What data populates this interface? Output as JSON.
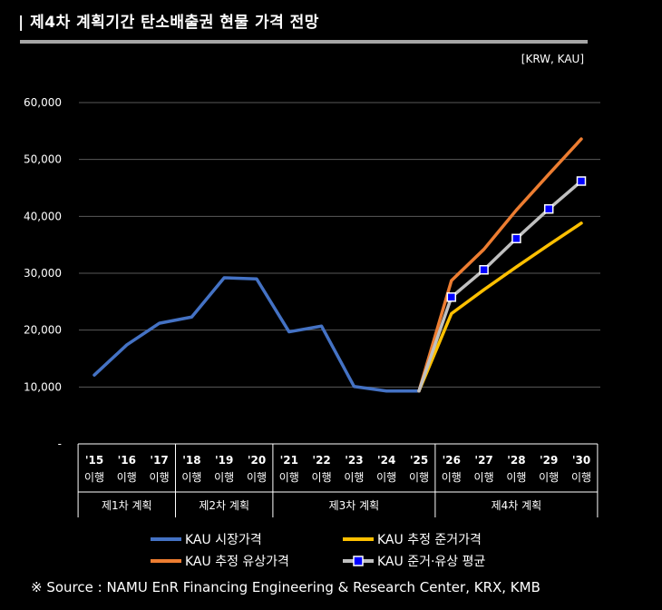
{
  "title": "|  제4차 계획기간 탄소배출권 현물 가격 전망",
  "unit": "[KRW, KAU]",
  "source": "※ Source : NAMU EnR Financing Engineering & Research Center, KRX, KMB",
  "chart_data": {
    "type": "line",
    "ylim": [
      0,
      60000
    ],
    "yticks": [
      {
        "value": 0,
        "label": "-"
      },
      {
        "value": 10000,
        "label": "10,000"
      },
      {
        "value": 20000,
        "label": "20,000"
      },
      {
        "value": 30000,
        "label": "30,000"
      },
      {
        "value": 40000,
        "label": "40,000"
      },
      {
        "value": 50000,
        "label": "50,000"
      },
      {
        "value": 60000,
        "label": "60,000"
      }
    ],
    "grid": true,
    "categories": [
      {
        "year": "'15",
        "sub": "이행"
      },
      {
        "year": "'16",
        "sub": "이행"
      },
      {
        "year": "'17",
        "sub": "이행"
      },
      {
        "year": "'18",
        "sub": "이행"
      },
      {
        "year": "'19",
        "sub": "이행"
      },
      {
        "year": "'20",
        "sub": "이행"
      },
      {
        "year": "'21",
        "sub": "이행"
      },
      {
        "year": "'22",
        "sub": "이행"
      },
      {
        "year": "'23",
        "sub": "이행"
      },
      {
        "year": "'24",
        "sub": "이행"
      },
      {
        "year": "'25",
        "sub": "이행"
      },
      {
        "year": "'26",
        "sub": "이행"
      },
      {
        "year": "'27",
        "sub": "이행"
      },
      {
        "year": "'28",
        "sub": "이행"
      },
      {
        "year": "'29",
        "sub": "이행"
      },
      {
        "year": "'30",
        "sub": "이행"
      }
    ],
    "periods": [
      {
        "label": "제1차 계획",
        "from": 0,
        "to": 2
      },
      {
        "label": "제2차 계획",
        "from": 3,
        "to": 5
      },
      {
        "label": "제3차 계획",
        "from": 6,
        "to": 10
      },
      {
        "label": "제4차 계획",
        "from": 11,
        "to": 15
      }
    ],
    "series": [
      {
        "name": "KAU 시장가격",
        "color": "#4472c4",
        "markers": false,
        "values": [
          12100,
          17400,
          21200,
          22300,
          29200,
          29000,
          19700,
          20700,
          10100,
          9300,
          9300,
          null,
          null,
          null,
          null,
          null
        ]
      },
      {
        "name": "KAU 추정 준거가격",
        "color": "#ffc000",
        "markers": false,
        "values": [
          null,
          null,
          null,
          null,
          null,
          null,
          null,
          null,
          null,
          null,
          9300,
          22900,
          27100,
          31100,
          35000,
          38800
        ]
      },
      {
        "name": "KAU 추정 유상가격",
        "color": "#ed7d31",
        "markers": false,
        "values": [
          null,
          null,
          null,
          null,
          null,
          null,
          null,
          null,
          null,
          null,
          9300,
          28700,
          34200,
          41100,
          47400,
          53600
        ]
      },
      {
        "name": "KAU 준거·유상 평균",
        "color": "#c0c0c0",
        "markers": true,
        "marker_color": "#0000ff",
        "values": [
          null,
          null,
          null,
          null,
          null,
          null,
          null,
          null,
          null,
          null,
          9300,
          25800,
          30600,
          36100,
          41300,
          46200
        ]
      }
    ]
  }
}
